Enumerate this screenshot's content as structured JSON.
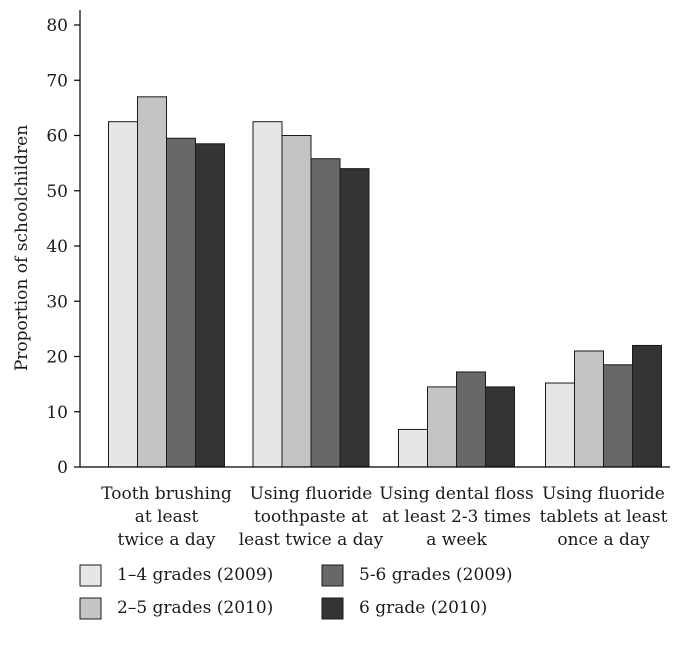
{
  "chart_data": {
    "type": "bar",
    "title": "",
    "xlabel": "",
    "ylabel": "Proportion of schoolchildren",
    "ylim": [
      0,
      80
    ],
    "yticks": [
      0,
      10,
      20,
      30,
      40,
      50,
      60,
      70,
      80
    ],
    "grid": false,
    "legend_position": "bottom",
    "categories": [
      [
        "Tooth brushing",
        "at least",
        "twice a day"
      ],
      [
        "Using fluoride",
        "toothpaste at",
        "least twice a day"
      ],
      [
        "Using dental floss",
        "at least 2-3 times",
        "a week"
      ],
      [
        "Using fluoride",
        "tablets at least",
        "once a day"
      ]
    ],
    "series": [
      {
        "name": "1–4 grades (2009)",
        "color": "#e6e6e6",
        "values": [
          62.5,
          62.5,
          6.8,
          15.2
        ]
      },
      {
        "name": "2–5 grades (2010)",
        "color": "#c4c4c4",
        "values": [
          67.0,
          60.0,
          14.5,
          21.0
        ]
      },
      {
        "name": "5-6 grades (2009)",
        "color": "#686868",
        "values": [
          59.5,
          55.8,
          17.2,
          18.5
        ]
      },
      {
        "name": "6 grade (2010)",
        "color": "#333534",
        "values": [
          58.5,
          54.0,
          14.5,
          22.0
        ]
      }
    ]
  }
}
